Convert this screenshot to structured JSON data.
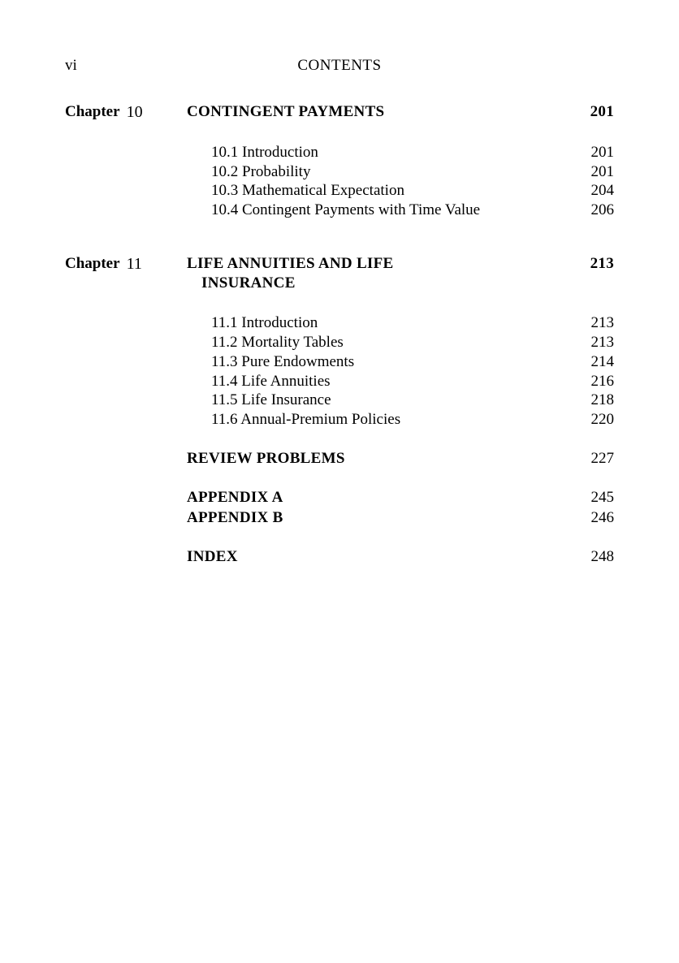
{
  "page_number_roman": "vi",
  "header_title": "CONTENTS",
  "chapter_word": "Chapter",
  "chapters": [
    {
      "number": "10",
      "title_line1": "CONTINGENT PAYMENTS",
      "title_line2": "",
      "start_page": "201",
      "sections": [
        {
          "label": "10.1 Introduction",
          "page": "201"
        },
        {
          "label": "10.2 Probability",
          "page": "201"
        },
        {
          "label": "10.3 Mathematical Expectation",
          "page": "204"
        },
        {
          "label": "10.4 Contingent Payments with Time Value",
          "page": "206"
        }
      ]
    },
    {
      "number": "11",
      "title_line1": "LIFE ANNUITIES AND LIFE",
      "title_line2": "INSURANCE",
      "start_page": "213",
      "sections": [
        {
          "label": "11.1 Introduction",
          "page": "213"
        },
        {
          "label": "11.2 Mortality Tables",
          "page": "213"
        },
        {
          "label": "11.3 Pure Endowments",
          "page": "214"
        },
        {
          "label": "11.4 Life Annuities",
          "page": "216"
        },
        {
          "label": "11.5 Life Insurance",
          "page": "218"
        },
        {
          "label": "11.6 Annual-Premium Policies",
          "page": "220"
        }
      ]
    }
  ],
  "backmatter": [
    {
      "label": "REVIEW PROBLEMS",
      "page": "227",
      "group": 0
    },
    {
      "label": "APPENDIX A",
      "page": "245",
      "group": 1
    },
    {
      "label": "APPENDIX B",
      "page": "246",
      "group": 1
    },
    {
      "label": "INDEX",
      "page": "248",
      "group": 2
    }
  ]
}
